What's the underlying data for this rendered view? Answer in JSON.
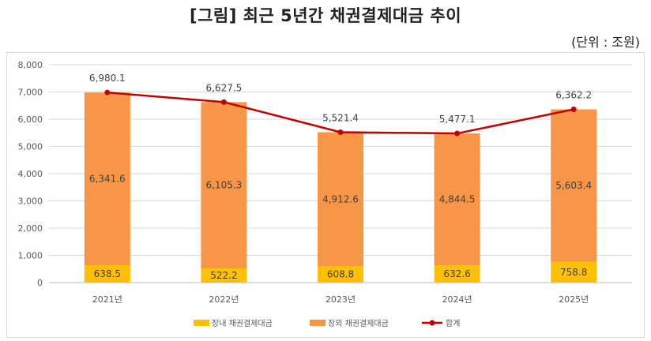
{
  "title": "[그림] 최근 5년간 채권결제대금 추이",
  "unit_label": "(단위 : 조원)",
  "colors": {
    "domestic": "#FFC000",
    "overseas": "#F79646",
    "total": "#C00000"
  },
  "chart_data": {
    "type": "bar",
    "stacked": true,
    "categories": [
      "2021년",
      "2022년",
      "2023년",
      "2024년",
      "2025년"
    ],
    "series": [
      {
        "name": "장내 채권결제대금",
        "type": "bar",
        "values": [
          638.5,
          522.2,
          608.8,
          632.6,
          758.8
        ]
      },
      {
        "name": "장외 채권결제대금",
        "type": "bar",
        "values": [
          6341.6,
          6105.3,
          4912.6,
          4844.5,
          5603.4
        ]
      },
      {
        "name": "합계",
        "type": "line",
        "values": [
          6980.1,
          6627.5,
          5521.4,
          5477.1,
          6362.2
        ]
      }
    ],
    "data_labels": {
      "domestic": [
        "638.5",
        "522.2",
        "608.8",
        "632.6",
        "758.8"
      ],
      "overseas": [
        "6,341.6",
        "6,105.3",
        "4,912.6",
        "4,844.5",
        "5,603.4"
      ],
      "total": [
        "6,980.1",
        "6,627.5",
        "5,521.4",
        "5,477.1",
        "6,362.2"
      ]
    },
    "y_ticks": [
      "0",
      "1,000",
      "2,000",
      "3,000",
      "4,000",
      "5,000",
      "6,000",
      "7,000",
      "8,000"
    ],
    "ylim": [
      0,
      8000
    ],
    "grid": true,
    "legend_position": "bottom"
  }
}
